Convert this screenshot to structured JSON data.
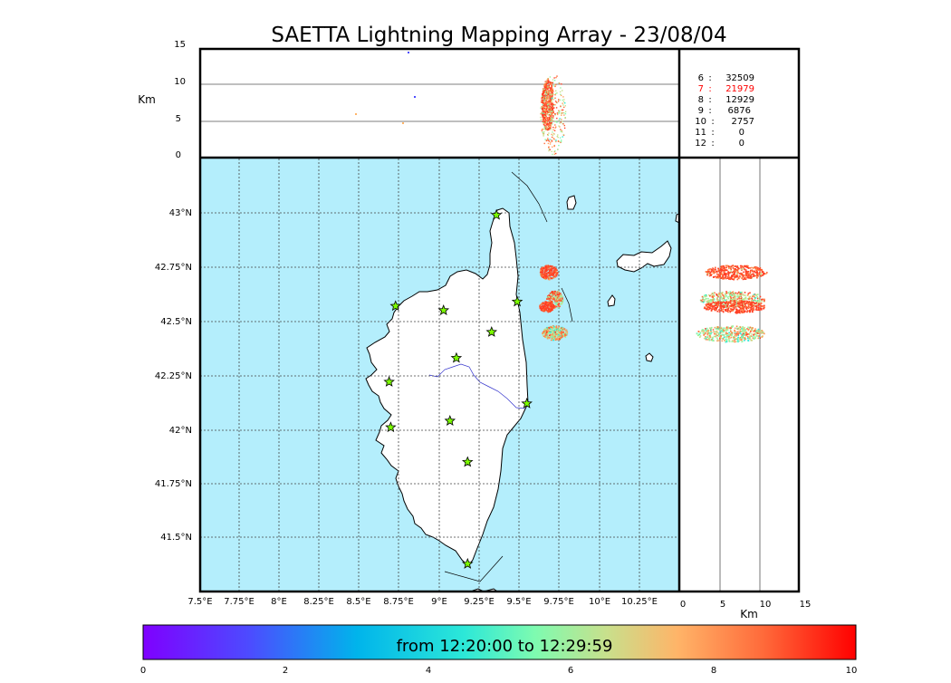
{
  "title": "SAETTA Lightning Mapping Array - 23/08/04",
  "colors": {
    "sea": "#b4eefc",
    "land": "#ffffff",
    "coast": "#000000",
    "grid": "#444444",
    "river": "#3333cc",
    "station": "#7cfc00",
    "highlight_count": "#ff0000"
  },
  "icons": {
    "station": "star-icon"
  },
  "alt_panel": {
    "ylabel": "Km",
    "yticks": [
      "0",
      "5",
      "10",
      "15"
    ]
  },
  "counts_panel": {
    "rows": [
      {
        "km": "6",
        "sep": ":",
        "count": "32509",
        "highlight": false
      },
      {
        "km": "7",
        "sep": ":",
        "count": "21979",
        "highlight": true
      },
      {
        "km": "8",
        "sep": ":",
        "count": "12929",
        "highlight": false
      },
      {
        "km": "9",
        "sep": ":",
        "count": "6876",
        "highlight": false
      },
      {
        "km": "10",
        "sep": ":",
        "count": "2757",
        "highlight": false
      },
      {
        "km": "11",
        "sep": ":",
        "count": "0",
        "highlight": false
      },
      {
        "km": "12",
        "sep": ":",
        "count": "0",
        "highlight": false
      }
    ]
  },
  "map_panel": {
    "lon_ticks": [
      "7.5°E",
      "7.75°E",
      "8°E",
      "8.25°E",
      "8.5°E",
      "8.75°E",
      "9°E",
      "9.25°E",
      "9.5°E",
      "9.75°E",
      "10°E",
      "10.25°E"
    ],
    "lat_ticks": [
      "43°N",
      "42.75°N",
      "42.5°N",
      "42.25°N",
      "42°N",
      "41.75°N",
      "41.5°N"
    ],
    "stations": [
      {
        "lon": 9.35,
        "lat": 42.99
      },
      {
        "lon": 8.72,
        "lat": 42.57
      },
      {
        "lon": 9.02,
        "lat": 42.55
      },
      {
        "lon": 9.48,
        "lat": 42.59
      },
      {
        "lon": 9.32,
        "lat": 42.45
      },
      {
        "lon": 9.1,
        "lat": 42.33
      },
      {
        "lon": 8.68,
        "lat": 42.22
      },
      {
        "lon": 9.54,
        "lat": 42.12
      },
      {
        "lon": 9.06,
        "lat": 42.04
      },
      {
        "lon": 8.69,
        "lat": 42.01
      },
      {
        "lon": 9.17,
        "lat": 41.85
      },
      {
        "lon": 9.17,
        "lat": 41.38
      }
    ]
  },
  "side_panel": {
    "xlabel": "Km",
    "xticks": [
      "0",
      "5",
      "10",
      "15"
    ]
  },
  "colorbar": {
    "label": "from 12:20:00 to 12:29:59",
    "ticks": [
      "0",
      "2",
      "4",
      "6",
      "8",
      "10"
    ]
  }
}
